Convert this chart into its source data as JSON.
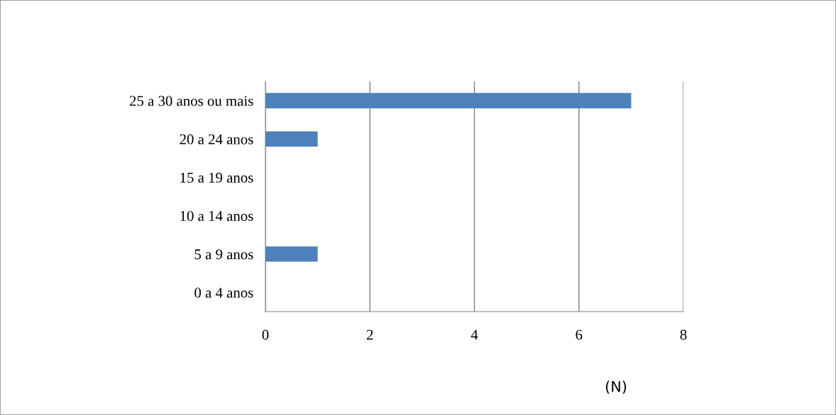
{
  "chart_data": {
    "type": "bar",
    "orientation": "horizontal",
    "xlabel": "(N)",
    "categories": [
      "25 a 30 anos ou mais",
      "20 a 24 anos",
      "15 a 19 anos",
      "10 a 14 anos",
      "5 a 9 anos",
      "0 a 4 anos"
    ],
    "values": [
      7,
      1,
      0,
      0,
      1,
      0
    ],
    "color": "#4f81bd",
    "xlim": [
      0,
      8
    ],
    "xticks": [
      0,
      2,
      4,
      6,
      8
    ],
    "grid": "x"
  }
}
